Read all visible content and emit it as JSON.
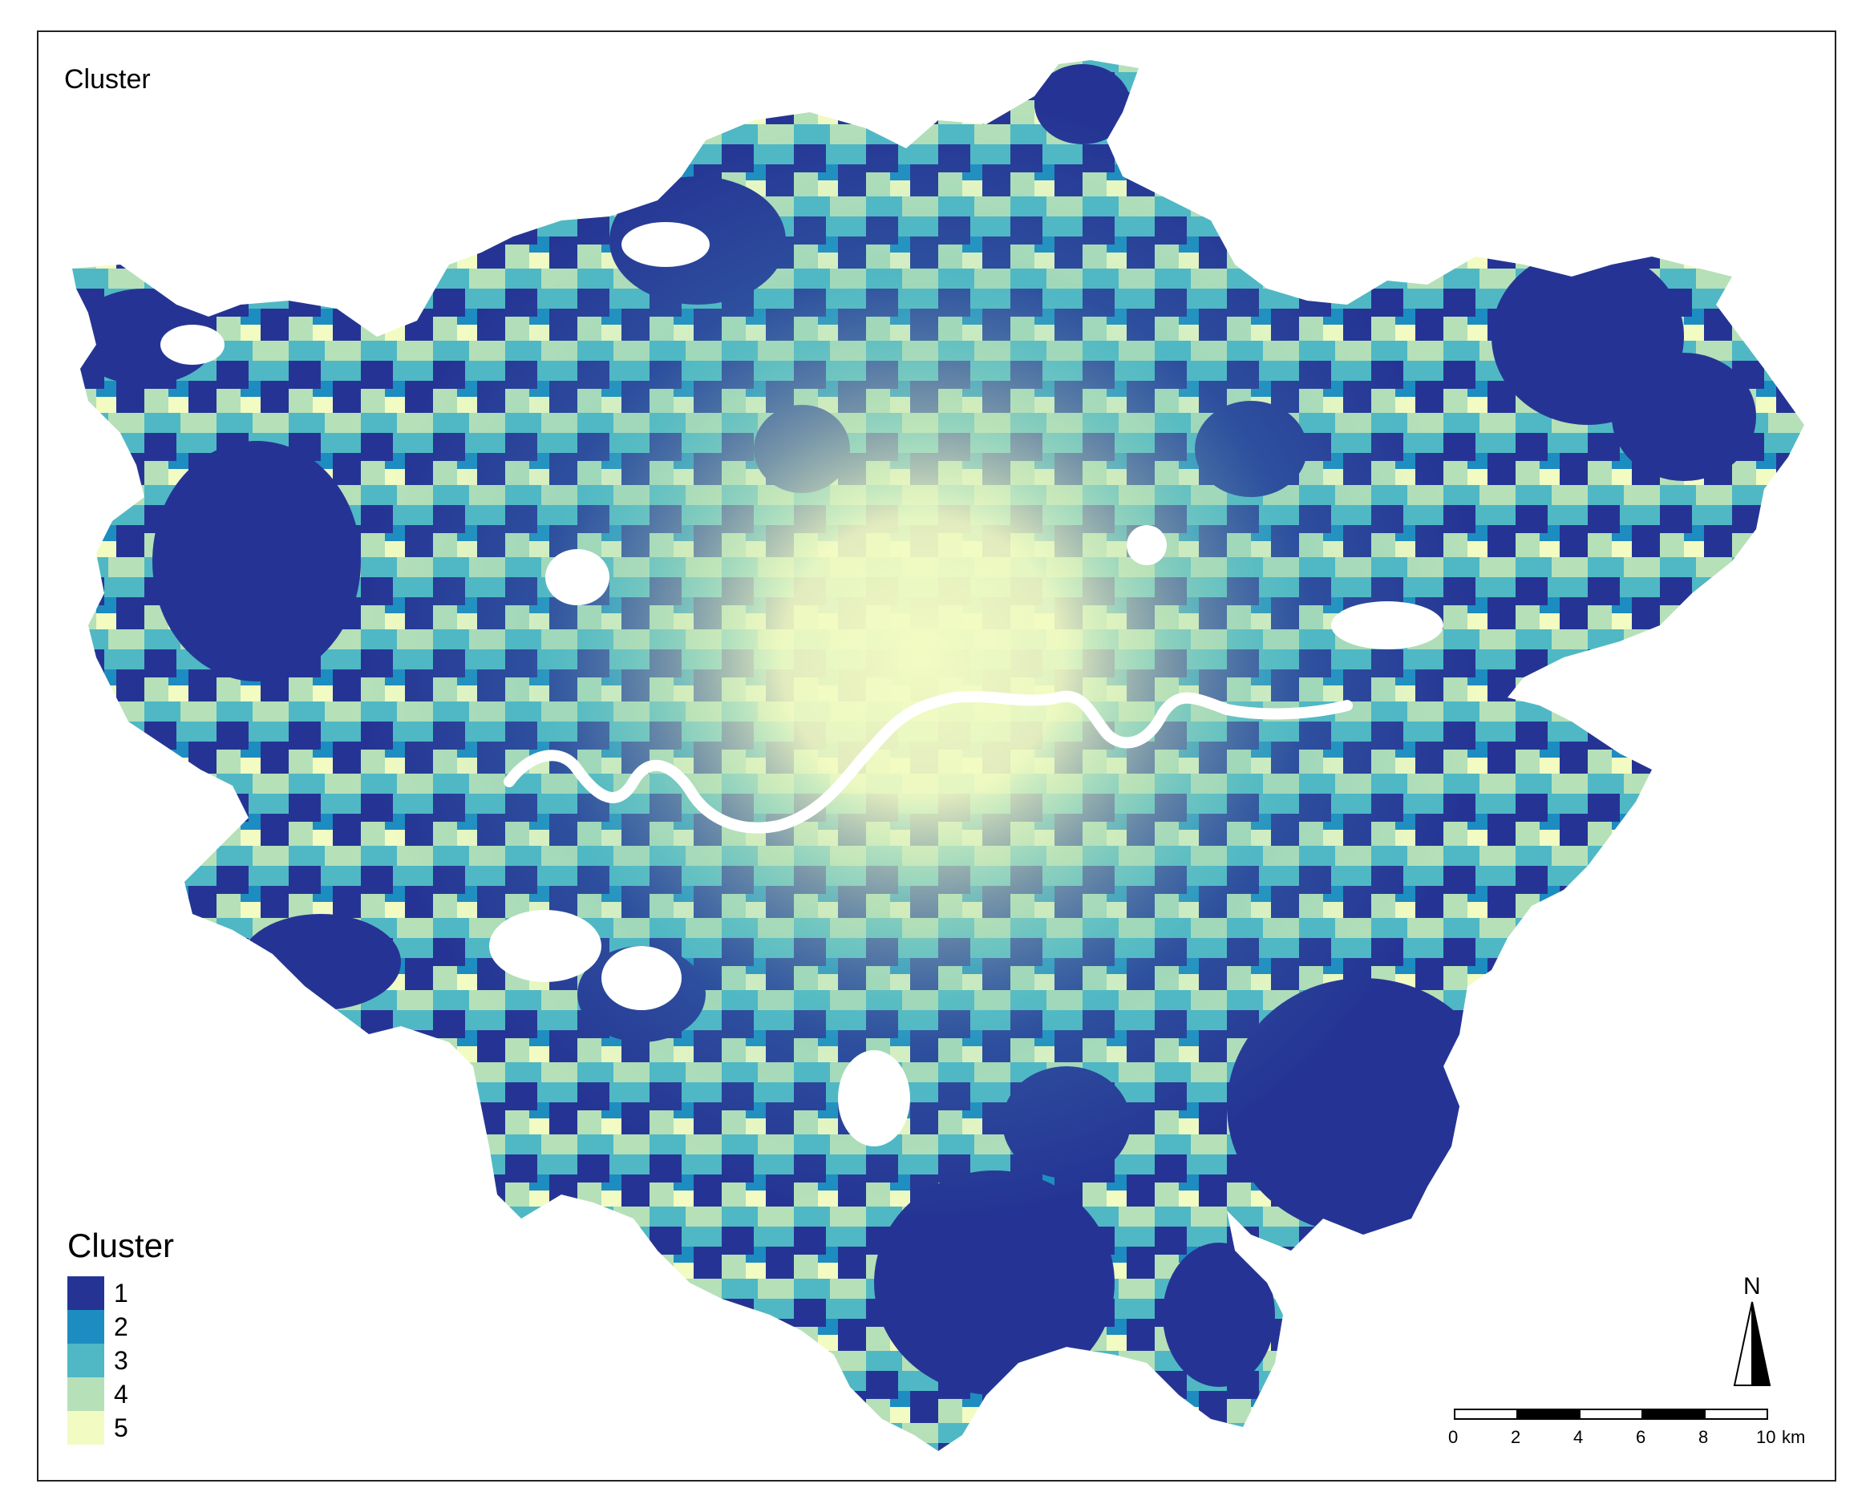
{
  "map": {
    "title": "Cluster",
    "river_color": "#ffffff",
    "background": "#ffffff"
  },
  "legend": {
    "title": "Cluster",
    "items": [
      {
        "label": "1",
        "color": "#253494"
      },
      {
        "label": "2",
        "color": "#1d8cc0"
      },
      {
        "label": "3",
        "color": "#4fb8c4"
      },
      {
        "label": "4",
        "color": "#b6e0b8"
      },
      {
        "label": "5",
        "color": "#f2fbc2"
      }
    ]
  },
  "north_arrow": {
    "label": "N"
  },
  "scale_bar": {
    "unit": "km",
    "ticks": [
      "0",
      "2",
      "4",
      "6",
      "8",
      "10"
    ]
  }
}
